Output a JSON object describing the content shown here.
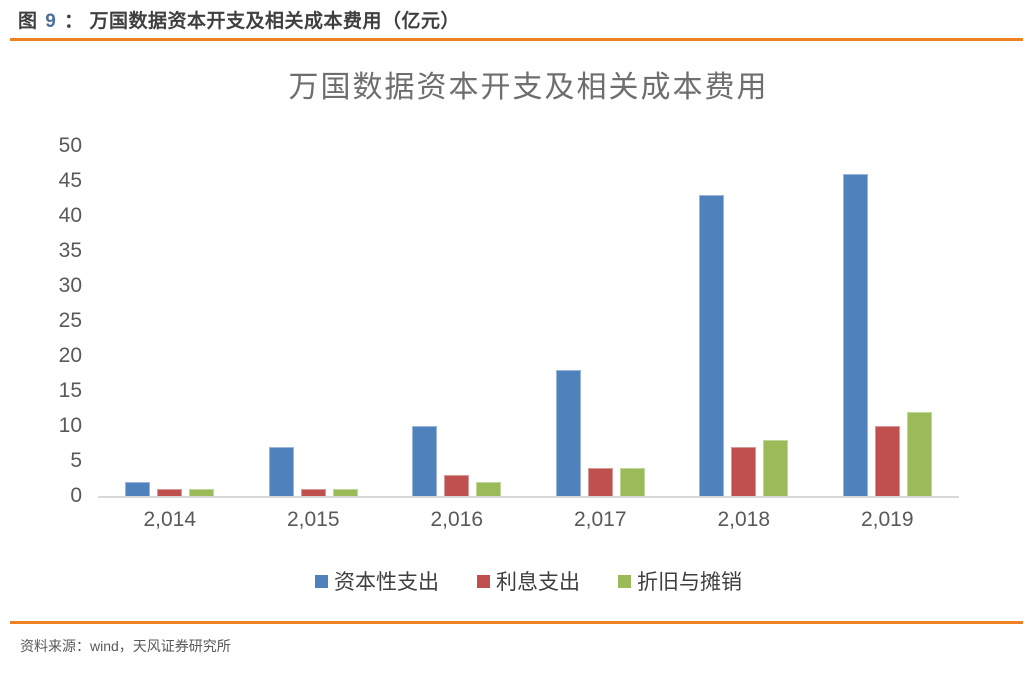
{
  "header": {
    "figure_word": "图",
    "figure_number": "9",
    "separator": "：",
    "title": "万国数据资本开支及相关成本费用（亿元）"
  },
  "chart_data": {
    "type": "bar",
    "title": "万国数据资本开支及相关成本费用",
    "categories": [
      "2,014",
      "2,015",
      "2,016",
      "2,017",
      "2,018",
      "2,019"
    ],
    "series": [
      {
        "name": "资本性支出",
        "color": "#4F81BD",
        "border_color": "#9AB5D9",
        "values": [
          2,
          7,
          10,
          18,
          43,
          46
        ]
      },
      {
        "name": "利息支出",
        "color": "#C0504D",
        "border_color": "#D49A98",
        "values": [
          1,
          1,
          3,
          4,
          7,
          10
        ]
      },
      {
        "name": "折旧与摊销",
        "color": "#9BBB59",
        "border_color": "#C2D69B",
        "values": [
          1,
          1,
          2,
          4,
          8,
          12
        ]
      }
    ],
    "ylim": [
      0,
      50
    ],
    "yticks": [
      0,
      5,
      10,
      15,
      20,
      25,
      30,
      35,
      40,
      45,
      50
    ],
    "grid": false,
    "legend_position": "bottom"
  },
  "footer": {
    "source": "资料来源：wind，天风证券研究所"
  },
  "colors": {
    "accent_orange": "#EE8122",
    "axis_text": "#595959",
    "chart_title_text": "#6E6E6E",
    "header_text": "#3F3F3F",
    "figure_number_text": "#4D7099",
    "baseline": "#D8D8D8"
  }
}
